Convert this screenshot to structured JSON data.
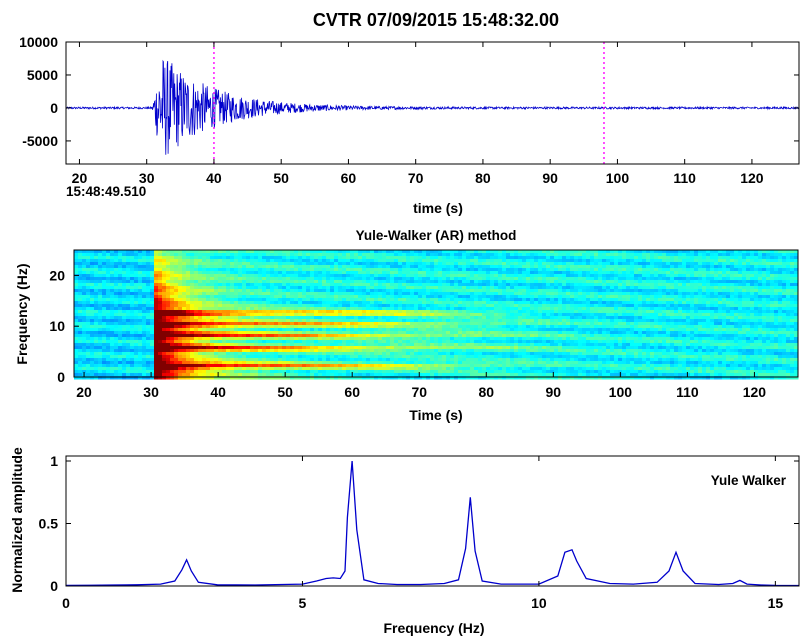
{
  "figure": {
    "title": "CVTR 07/09/2015  15:48:32.00"
  },
  "chart_data": [
    {
      "type": "line",
      "panel": "waveform",
      "xlabel": "time (s)",
      "ylabel": "",
      "xlim": [
        18,
        127
      ],
      "ylim": [
        -8500,
        10000
      ],
      "xticks": [
        20,
        30,
        40,
        50,
        60,
        70,
        80,
        90,
        100,
        110,
        120
      ],
      "yticks": [
        -5000,
        0,
        5000,
        10000
      ],
      "start_time_label": "15:48:49.510",
      "grid": false,
      "line_color": "#0000cc",
      "marker_color": "#ff00ff",
      "pick_markers_s": [
        40,
        98
      ],
      "signal": {
        "onset_s": 30.8,
        "peak_time_s": 33,
        "peak_amplitude": 10000,
        "decay_end_s": 62,
        "noise_level": 150
      }
    },
    {
      "type": "heatmap",
      "panel": "spectrogram",
      "title": "Yule-Walker (AR) method",
      "xlabel": "Time (s)",
      "ylabel": "Frequency (Hz)",
      "xlim": [
        18.5,
        126.5
      ],
      "ylim": [
        0,
        25
      ],
      "xticks": [
        20,
        30,
        40,
        50,
        60,
        70,
        80,
        90,
        100,
        110,
        120
      ],
      "yticks": [
        0,
        10,
        20
      ],
      "colormap": "jet",
      "onset_s": 30,
      "bands_hz": [
        2.5,
        6.0,
        8.5,
        10.7,
        12.9
      ],
      "energy_fade_s": 90
    },
    {
      "type": "line",
      "panel": "spectrum",
      "xlabel": "Frequency (Hz)",
      "ylabel": "Normalized amplitude",
      "legend": "Yule Walker",
      "xlim": [
        0,
        15.5
      ],
      "ylim": [
        0,
        1
      ],
      "xticks": [
        0,
        5,
        10,
        15
      ],
      "yticks": [
        0,
        0.5,
        1
      ],
      "line_color": "#0000cc",
      "x": [
        0,
        0.5,
        1.0,
        1.5,
        2.0,
        2.3,
        2.45,
        2.55,
        2.65,
        2.8,
        3.2,
        4.0,
        5.0,
        5.3,
        5.5,
        5.65,
        5.8,
        5.9,
        5.95,
        6.05,
        6.15,
        6.3,
        6.6,
        7.0,
        7.5,
        8.0,
        8.3,
        8.45,
        8.55,
        8.65,
        8.8,
        9.2,
        10.0,
        10.4,
        10.55,
        10.7,
        10.8,
        11.0,
        11.5,
        12.0,
        12.5,
        12.75,
        12.9,
        13.05,
        13.3,
        13.8,
        14.1,
        14.25,
        14.4,
        14.7,
        15.0,
        15.5
      ],
      "y": [
        0.005,
        0.006,
        0.008,
        0.01,
        0.015,
        0.04,
        0.13,
        0.21,
        0.12,
        0.03,
        0.01,
        0.008,
        0.015,
        0.04,
        0.06,
        0.065,
        0.06,
        0.12,
        0.55,
        1.0,
        0.45,
        0.05,
        0.02,
        0.012,
        0.012,
        0.02,
        0.05,
        0.3,
        0.71,
        0.28,
        0.04,
        0.015,
        0.015,
        0.08,
        0.27,
        0.29,
        0.2,
        0.06,
        0.02,
        0.015,
        0.03,
        0.12,
        0.27,
        0.12,
        0.02,
        0.012,
        0.02,
        0.045,
        0.015,
        0.008,
        0.005,
        0.004
      ]
    }
  ]
}
